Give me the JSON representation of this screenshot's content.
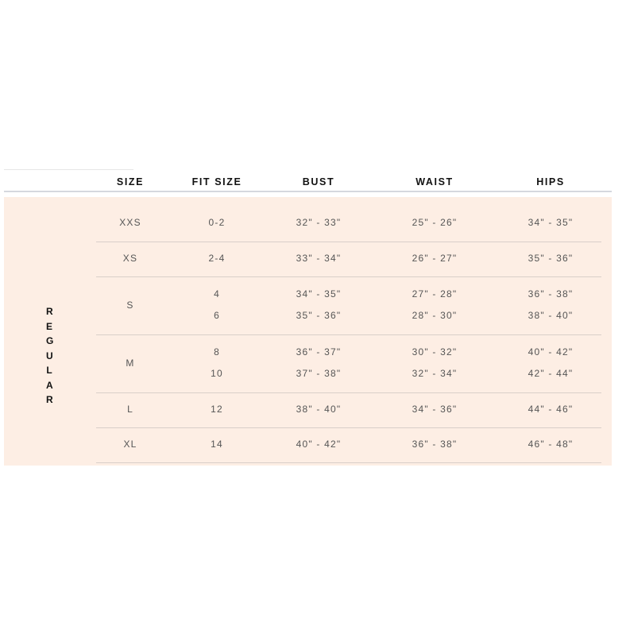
{
  "headers": [
    "SIZE",
    "FIT SIZE",
    "BUST",
    "WAIST",
    "HIPS"
  ],
  "group_label": "REGULAR",
  "colors": {
    "band": "#fdeee4",
    "header_text": "#111111",
    "cell_text": "#555555"
  },
  "rows": [
    {
      "size": "XXS",
      "lines": [
        {
          "fit": "0-2",
          "bust": "32\" - 33\"",
          "waist": "25\" - 26\"",
          "hips": "34\" - 35\""
        }
      ]
    },
    {
      "size": "XS",
      "lines": [
        {
          "fit": "2-4",
          "bust": "33\" - 34\"",
          "waist": "26\" - 27\"",
          "hips": "35\" - 36\""
        }
      ]
    },
    {
      "size": "S",
      "lines": [
        {
          "fit": "4",
          "bust": "34\" - 35\"",
          "waist": "27\" - 28\"",
          "hips": "36\" - 38\""
        },
        {
          "fit": "6",
          "bust": "35\" - 36\"",
          "waist": "28\" - 30\"",
          "hips": "38\" - 40\""
        }
      ]
    },
    {
      "size": "M",
      "lines": [
        {
          "fit": "8",
          "bust": "36\" - 37\"",
          "waist": "30\" - 32\"",
          "hips": "40\" - 42\""
        },
        {
          "fit": "10",
          "bust": "37\" - 38\"",
          "waist": "32\" - 34\"",
          "hips": "42\" - 44\""
        }
      ]
    },
    {
      "size": "L",
      "lines": [
        {
          "fit": "12",
          "bust": "38\" - 40\"",
          "waist": "34\" - 36\"",
          "hips": "44\" - 46\""
        }
      ]
    },
    {
      "size": "XL",
      "lines": [
        {
          "fit": "14",
          "bust": "40\" - 42\"",
          "waist": "36\" - 38\"",
          "hips": "46\" - 48\""
        }
      ]
    }
  ]
}
